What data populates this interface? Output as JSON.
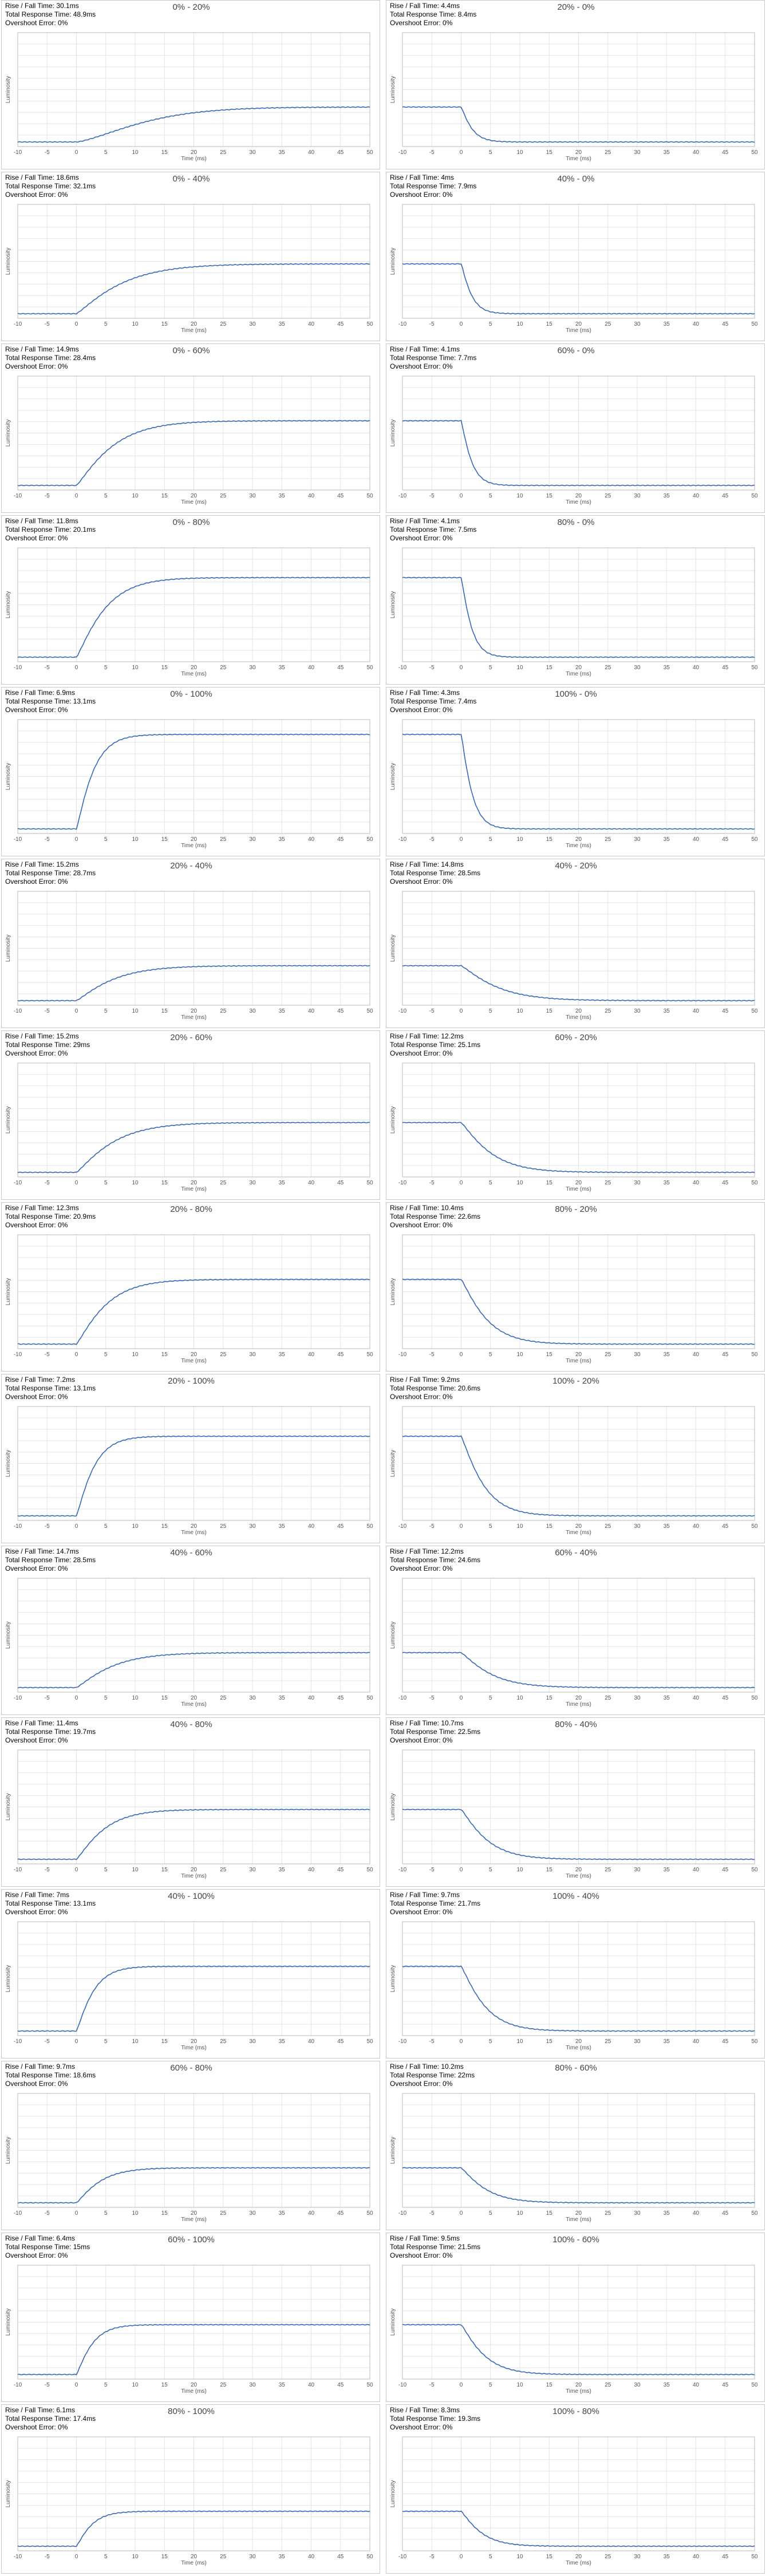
{
  "chart_data": [
    {
      "type": "line",
      "title": "0% - 20%",
      "transition": "rise",
      "stats": {
        "rise_fall": "Rise / Fall Time: 30.1ms",
        "total": "Total Response Time: 48.9ms",
        "overshoot": "Overshoot Error: 0%"
      },
      "xlabel": "Time (ms)",
      "ylabel": "Luminosity",
      "xlim": [
        -10,
        50
      ],
      "start_ms": 0,
      "tau_ms": 13.1
    },
    {
      "type": "line",
      "title": "20% - 0%",
      "transition": "fall",
      "stats": {
        "rise_fall": "Rise / Fall Time: 4.4ms",
        "total": "Total Response Time: 8.4ms",
        "overshoot": "Overshoot Error: 0%"
      },
      "xlabel": "Time (ms)",
      "ylabel": "Luminosity",
      "xlim": [
        -10,
        50
      ],
      "start_ms": 0,
      "tau_ms": 1.9
    },
    {
      "type": "line",
      "title": "0% - 40%",
      "transition": "rise",
      "stats": {
        "rise_fall": "Rise / Fall Time: 18.6ms",
        "total": "Total Response Time: 32.1ms",
        "overshoot": "Overshoot Error: 0%"
      },
      "xlabel": "Time (ms)",
      "ylabel": "Luminosity",
      "xlim": [
        -10,
        50
      ],
      "start_ms": 0,
      "tau_ms": 8.1
    },
    {
      "type": "line",
      "title": "40% - 0%",
      "transition": "fall",
      "stats": {
        "rise_fall": "Rise / Fall Time: 4ms",
        "total": "Total Response Time: 7.9ms",
        "overshoot": "Overshoot Error: 0%"
      },
      "xlabel": "Time (ms)",
      "ylabel": "Luminosity",
      "xlim": [
        -10,
        50
      ],
      "start_ms": 0,
      "tau_ms": 1.8
    },
    {
      "type": "line",
      "title": "0% - 60%",
      "transition": "rise",
      "stats": {
        "rise_fall": "Rise / Fall Time: 14.9ms",
        "total": "Total Response Time: 28.4ms",
        "overshoot": "Overshoot Error: 0%"
      },
      "xlabel": "Time (ms)",
      "ylabel": "Luminosity",
      "xlim": [
        -10,
        50
      ],
      "start_ms": 0,
      "tau_ms": 6.5
    },
    {
      "type": "line",
      "title": "60% - 0%",
      "transition": "fall",
      "stats": {
        "rise_fall": "Rise / Fall Time: 4.1ms",
        "total": "Total Response Time: 7.7ms",
        "overshoot": "Overshoot Error: 0%"
      },
      "xlabel": "Time (ms)",
      "ylabel": "Luminosity",
      "xlim": [
        -10,
        50
      ],
      "start_ms": 0,
      "tau_ms": 1.8
    },
    {
      "type": "line",
      "title": "0% - 80%",
      "transition": "rise",
      "stats": {
        "rise_fall": "Rise / Fall Time: 11.8ms",
        "total": "Total Response Time: 20.1ms",
        "overshoot": "Overshoot Error: 0%"
      },
      "xlabel": "Time (ms)",
      "ylabel": "Luminosity",
      "xlim": [
        -10,
        50
      ],
      "start_ms": 0,
      "tau_ms": 5.1
    },
    {
      "type": "line",
      "title": "80% - 0%",
      "transition": "fall",
      "stats": {
        "rise_fall": "Rise / Fall Time: 4.1ms",
        "total": "Total Response Time: 7.5ms",
        "overshoot": "Overshoot Error: 0%"
      },
      "xlabel": "Time (ms)",
      "ylabel": "Luminosity",
      "xlim": [
        -10,
        50
      ],
      "start_ms": 0,
      "tau_ms": 1.8
    },
    {
      "type": "line",
      "title": "0% - 100%",
      "transition": "rise",
      "stats": {
        "rise_fall": "Rise / Fall Time: 6.9ms",
        "total": "Total Response Time: 13.1ms",
        "overshoot": "Overshoot Error: 0%"
      },
      "xlabel": "Time (ms)",
      "ylabel": "Luminosity",
      "xlim": [
        -10,
        50
      ],
      "start_ms": 0,
      "tau_ms": 3.0
    },
    {
      "type": "line",
      "title": "100% - 0%",
      "transition": "fall",
      "stats": {
        "rise_fall": "Rise / Fall Time: 4.3ms",
        "total": "Total Response Time: 7.4ms",
        "overshoot": "Overshoot Error: 0%"
      },
      "xlabel": "Time (ms)",
      "ylabel": "Luminosity",
      "xlim": [
        -10,
        50
      ],
      "start_ms": 0,
      "tau_ms": 1.9
    },
    {
      "type": "line",
      "title": "20% - 40%",
      "transition": "rise",
      "stats": {
        "rise_fall": "Rise / Fall Time: 15.2ms",
        "total": "Total Response Time: 28.7ms",
        "overshoot": "Overshoot Error: 0%"
      },
      "xlabel": "Time (ms)",
      "ylabel": "Luminosity",
      "xlim": [
        -10,
        50
      ],
      "start_ms": 0,
      "tau_ms": 6.6
    },
    {
      "type": "line",
      "title": "40% - 20%",
      "transition": "fall",
      "stats": {
        "rise_fall": "Rise / Fall Time: 14.8ms",
        "total": "Total Response Time: 28.5ms",
        "overshoot": "Overshoot Error: 0%"
      },
      "xlabel": "Time (ms)",
      "ylabel": "Luminosity",
      "xlim": [
        -10,
        50
      ],
      "start_ms": 0,
      "tau_ms": 6.4
    },
    {
      "type": "line",
      "title": "20% - 60%",
      "transition": "rise",
      "stats": {
        "rise_fall": "Rise / Fall Time: 15.2ms",
        "total": "Total Response Time: 29ms",
        "overshoot": "Overshoot Error: 0%"
      },
      "xlabel": "Time (ms)",
      "ylabel": "Luminosity",
      "xlim": [
        -10,
        50
      ],
      "start_ms": 0,
      "tau_ms": 6.6
    },
    {
      "type": "line",
      "title": "60% - 20%",
      "transition": "fall",
      "stats": {
        "rise_fall": "Rise / Fall Time: 12.2ms",
        "total": "Total Response Time: 25.1ms",
        "overshoot": "Overshoot Error: 0%"
      },
      "xlabel": "Time (ms)",
      "ylabel": "Luminosity",
      "xlim": [
        -10,
        50
      ],
      "start_ms": 0,
      "tau_ms": 5.3
    },
    {
      "type": "line",
      "title": "20% - 80%",
      "transition": "rise",
      "stats": {
        "rise_fall": "Rise / Fall Time: 12.3ms",
        "total": "Total Response Time: 20.9ms",
        "overshoot": "Overshoot Error: 0%"
      },
      "xlabel": "Time (ms)",
      "ylabel": "Luminosity",
      "xlim": [
        -10,
        50
      ],
      "start_ms": 0,
      "tau_ms": 5.3
    },
    {
      "type": "line",
      "title": "80% - 20%",
      "transition": "fall",
      "stats": {
        "rise_fall": "Rise / Fall Time: 10.4ms",
        "total": "Total Response Time: 22.6ms",
        "overshoot": "Overshoot Error: 0%"
      },
      "xlabel": "Time (ms)",
      "ylabel": "Luminosity",
      "xlim": [
        -10,
        50
      ],
      "start_ms": 0,
      "tau_ms": 4.5
    },
    {
      "type": "line",
      "title": "20% - 100%",
      "transition": "rise",
      "stats": {
        "rise_fall": "Rise / Fall Time: 7.2ms",
        "total": "Total Response Time: 13.1ms",
        "overshoot": "Overshoot Error: 0%"
      },
      "xlabel": "Time (ms)",
      "ylabel": "Luminosity",
      "xlim": [
        -10,
        50
      ],
      "start_ms": 0,
      "tau_ms": 3.1
    },
    {
      "type": "line",
      "title": "100% - 20%",
      "transition": "fall",
      "stats": {
        "rise_fall": "Rise / Fall Time: 9.2ms",
        "total": "Total Response Time: 20.6ms",
        "overshoot": "Overshoot Error: 0%"
      },
      "xlabel": "Time (ms)",
      "ylabel": "Luminosity",
      "xlim": [
        -10,
        50
      ],
      "start_ms": 0,
      "tau_ms": 4.0
    },
    {
      "type": "line",
      "title": "40% - 60%",
      "transition": "rise",
      "stats": {
        "rise_fall": "Rise / Fall Time: 14.7ms",
        "total": "Total Response Time: 28.5ms",
        "overshoot": "Overshoot Error: 0%"
      },
      "xlabel": "Time (ms)",
      "ylabel": "Luminosity",
      "xlim": [
        -10,
        50
      ],
      "start_ms": 0,
      "tau_ms": 6.4
    },
    {
      "type": "line",
      "title": "60% - 40%",
      "transition": "fall",
      "stats": {
        "rise_fall": "Rise / Fall Time: 12.2ms",
        "total": "Total Response Time: 24.6ms",
        "overshoot": "Overshoot Error: 0%"
      },
      "xlabel": "Time (ms)",
      "ylabel": "Luminosity",
      "xlim": [
        -10,
        50
      ],
      "start_ms": 0,
      "tau_ms": 5.3
    },
    {
      "type": "line",
      "title": "40% - 80%",
      "transition": "rise",
      "stats": {
        "rise_fall": "Rise / Fall Time: 11.4ms",
        "total": "Total Response Time: 19.7ms",
        "overshoot": "Overshoot Error: 0%"
      },
      "xlabel": "Time (ms)",
      "ylabel": "Luminosity",
      "xlim": [
        -10,
        50
      ],
      "start_ms": 0,
      "tau_ms": 5.0
    },
    {
      "type": "line",
      "title": "80% - 40%",
      "transition": "fall",
      "stats": {
        "rise_fall": "Rise / Fall Time: 10.7ms",
        "total": "Total Response Time: 22.5ms",
        "overshoot": "Overshoot Error: 0%"
      },
      "xlabel": "Time (ms)",
      "ylabel": "Luminosity",
      "xlim": [
        -10,
        50
      ],
      "start_ms": 0,
      "tau_ms": 4.6
    },
    {
      "type": "line",
      "title": "40% - 100%",
      "transition": "rise",
      "stats": {
        "rise_fall": "Rise / Fall Time: 7ms",
        "total": "Total Response Time: 13.1ms",
        "overshoot": "Overshoot Error: 0%"
      },
      "xlabel": "Time (ms)",
      "ylabel": "Luminosity",
      "xlim": [
        -10,
        50
      ],
      "start_ms": 0,
      "tau_ms": 3.0
    },
    {
      "type": "line",
      "title": "100% - 40%",
      "transition": "fall",
      "stats": {
        "rise_fall": "Rise / Fall Time: 9.7ms",
        "total": "Total Response Time: 21.7ms",
        "overshoot": "Overshoot Error: 0%"
      },
      "xlabel": "Time (ms)",
      "ylabel": "Luminosity",
      "xlim": [
        -10,
        50
      ],
      "start_ms": 0,
      "tau_ms": 4.2
    },
    {
      "type": "line",
      "title": "60% - 80%",
      "transition": "rise",
      "stats": {
        "rise_fall": "Rise / Fall Time: 9.7ms",
        "total": "Total Response Time: 18.6ms",
        "overshoot": "Overshoot Error: 0%"
      },
      "xlabel": "Time (ms)",
      "ylabel": "Luminosity",
      "xlim": [
        -10,
        50
      ],
      "start_ms": 0,
      "tau_ms": 4.2
    },
    {
      "type": "line",
      "title": "80% - 60%",
      "transition": "fall",
      "stats": {
        "rise_fall": "Rise / Fall Time: 10.2ms",
        "total": "Total Response Time: 22ms",
        "overshoot": "Overshoot Error: 0%"
      },
      "xlabel": "Time (ms)",
      "ylabel": "Luminosity",
      "xlim": [
        -10,
        50
      ],
      "start_ms": 0,
      "tau_ms": 4.4
    },
    {
      "type": "line",
      "title": "60% - 100%",
      "transition": "rise",
      "stats": {
        "rise_fall": "Rise / Fall Time: 6.4ms",
        "total": "Total Response Time: 15ms",
        "overshoot": "Overshoot Error: 0%"
      },
      "xlabel": "Time (ms)",
      "ylabel": "Luminosity",
      "xlim": [
        -10,
        50
      ],
      "start_ms": 0,
      "tau_ms": 2.8
    },
    {
      "type": "line",
      "title": "100% - 60%",
      "transition": "fall",
      "stats": {
        "rise_fall": "Rise / Fall Time: 9.5ms",
        "total": "Total Response Time: 21.5ms",
        "overshoot": "Overshoot Error: 0%"
      },
      "xlabel": "Time (ms)",
      "ylabel": "Luminosity",
      "xlim": [
        -10,
        50
      ],
      "start_ms": 0,
      "tau_ms": 4.1
    },
    {
      "type": "line",
      "title": "80% - 100%",
      "transition": "rise",
      "stats": {
        "rise_fall": "Rise / Fall Time: 6.1ms",
        "total": "Total Response Time: 17.4ms",
        "overshoot": "Overshoot Error: 0%"
      },
      "xlabel": "Time (ms)",
      "ylabel": "Luminosity",
      "xlim": [
        -10,
        50
      ],
      "start_ms": 0,
      "tau_ms": 2.7
    },
    {
      "type": "line",
      "title": "100% - 80%",
      "transition": "fall",
      "stats": {
        "rise_fall": "Rise / Fall Time: 8.3ms",
        "total": "Total Response Time: 19.3ms",
        "overshoot": "Overshoot Error: 0%"
      },
      "xlabel": "Time (ms)",
      "ylabel": "Luminosity",
      "xlim": [
        -10,
        50
      ],
      "start_ms": 0,
      "tau_ms": 3.6
    }
  ],
  "xticks": [
    "-10",
    "-5",
    "0",
    "5",
    "10",
    "15",
    "20",
    "25",
    "30",
    "35",
    "40",
    "45",
    "50"
  ],
  "colors": {
    "line": "#3566b8",
    "grid": "#e3e3e3",
    "axis": "#b9b9b9",
    "border": "#c8c8c8"
  }
}
